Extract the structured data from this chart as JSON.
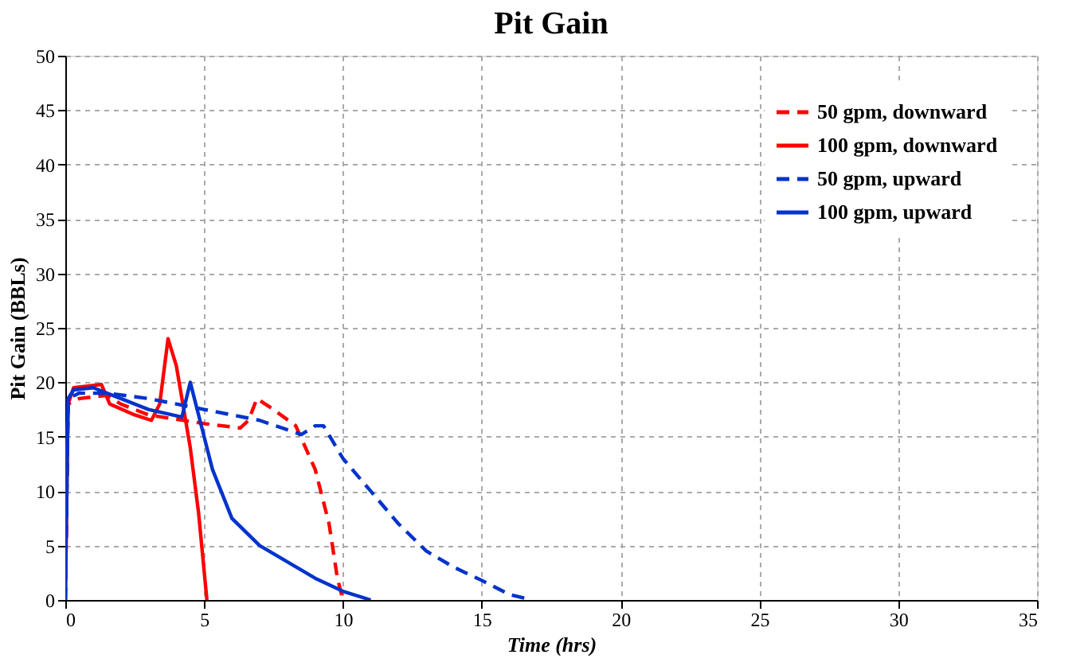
{
  "chart_data": {
    "type": "line",
    "title": "Pit Gain",
    "xlabel": "Time (hrs)",
    "ylabel": "Pit Gain (BBLs)",
    "xlim": [
      0,
      35
    ],
    "xticks": [
      0,
      5,
      10,
      15,
      20,
      25,
      30,
      35
    ],
    "ylim": [
      0,
      50
    ],
    "yticks": [
      0,
      5,
      10,
      15,
      20,
      25,
      30,
      35,
      40,
      45,
      50
    ],
    "grid": true,
    "legend": "top right",
    "marker": "none",
    "series": [
      {
        "name": "50 gpm, downward",
        "color": "#ff0000",
        "line_style": "dashed",
        "x": [
          0,
          0.1,
          0.5,
          1.5,
          2,
          3,
          5,
          6.3,
          6.6,
          6.9,
          7.5,
          8.3,
          9,
          9.5,
          9.8,
          10
        ],
        "values": [
          0,
          18,
          18.5,
          18.8,
          18,
          17,
          16.2,
          15.8,
          16.5,
          18.5,
          17.5,
          16,
          12,
          7,
          2,
          0
        ]
      },
      {
        "name": "100 gpm, downward",
        "color": "#ff0000",
        "line_style": "solid",
        "x": [
          0,
          0.1,
          0.3,
          1,
          1.3,
          1.6,
          2.5,
          3.1,
          3.4,
          3.7,
          4,
          4.5,
          4.8,
          5.1
        ],
        "values": [
          0,
          18,
          19.5,
          19.7,
          19.8,
          18,
          17,
          16.5,
          18,
          24,
          21.5,
          14,
          8,
          0
        ]
      },
      {
        "name": "50 gpm, upward",
        "color": "#0033cc",
        "line_style": "dashed",
        "x": [
          0,
          0.1,
          0.5,
          1.5,
          3,
          5,
          7,
          8.5,
          9,
          9.3,
          10,
          11,
          12,
          13,
          14,
          15,
          16,
          16.8
        ],
        "values": [
          0,
          18.5,
          19,
          19,
          18.5,
          17.5,
          16.5,
          15.2,
          16,
          16,
          13,
          10,
          7,
          4.5,
          3,
          1.8,
          0.5,
          0
        ]
      },
      {
        "name": "100 gpm, upward",
        "color": "#0033cc",
        "line_style": "solid",
        "x": [
          0,
          0.05,
          0.1,
          0.3,
          1,
          2,
          3,
          4.2,
          4.5,
          4.8,
          5.3,
          6,
          7,
          8,
          9,
          10,
          11
        ],
        "values": [
          0,
          10,
          18.5,
          19.3,
          19.5,
          18.5,
          17.5,
          16.8,
          20,
          17,
          12,
          7.5,
          5,
          3.5,
          2,
          0.8,
          0
        ]
      }
    ]
  }
}
